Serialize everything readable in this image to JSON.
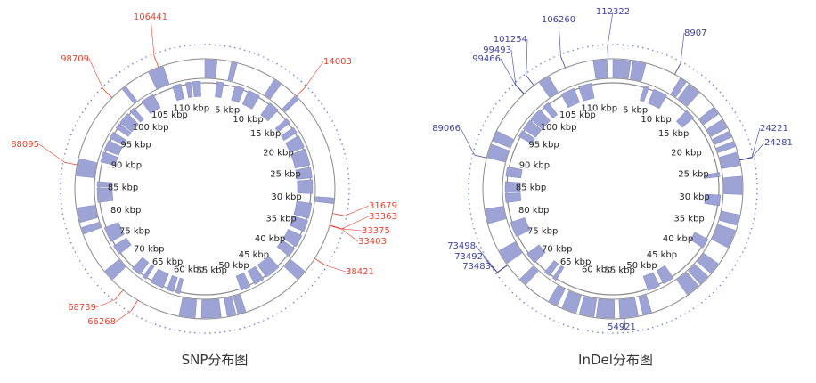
{
  "panels": [
    {
      "id": "snp",
      "title": "SNP分布图",
      "marker_color": "#e8412c",
      "ruler_labels": [
        "5 kbp",
        "10 kbp",
        "15 kbp",
        "20 kbp",
        "25 kbp",
        "30 kbp",
        "35 kbp",
        "40 kbp",
        "45 kbp",
        "50 kbp",
        "55 kbp",
        "60 kbp",
        "65 kbp",
        "70 kbp",
        "75 kbp",
        "80 kbp",
        "85 kbp",
        "90 kbp",
        "95 kbp",
        "100 kbp",
        "105 kbp",
        "110 kbp"
      ],
      "markers": [
        "106441",
        "14003",
        "98709",
        "88095",
        "31679",
        "33363",
        "33375",
        "33403",
        "38421",
        "68739",
        "66268"
      ]
    },
    {
      "id": "indel",
      "title": "InDel分布图",
      "marker_color": "#3c3fa0",
      "ruler_labels": [
        "5 kbp",
        "10 kbp",
        "15 kbp",
        "20 kbp",
        "25 kbp",
        "30 kbp",
        "35 kbp",
        "40 kbp",
        "45 kbp",
        "50 kbp",
        "55 kbp",
        "60 kbp",
        "65 kbp",
        "70 kbp",
        "75 kbp",
        "80 kbp",
        "85 kbp",
        "90 kbp",
        "95 kbp",
        "100 kbp",
        "105 kbp",
        "110 kbp"
      ],
      "markers": [
        "112322",
        "106260",
        "8907",
        "101254",
        "99493",
        "99466",
        "89066",
        "24221",
        "24281",
        "73498",
        "73492",
        "73483",
        "54921"
      ]
    }
  ],
  "colors": {
    "gene_fill": "#9ea3d6",
    "gene_stroke": "#7c82c2",
    "ring_line": "#8a8a8a",
    "tick_dot": "#6f7fbf"
  }
}
